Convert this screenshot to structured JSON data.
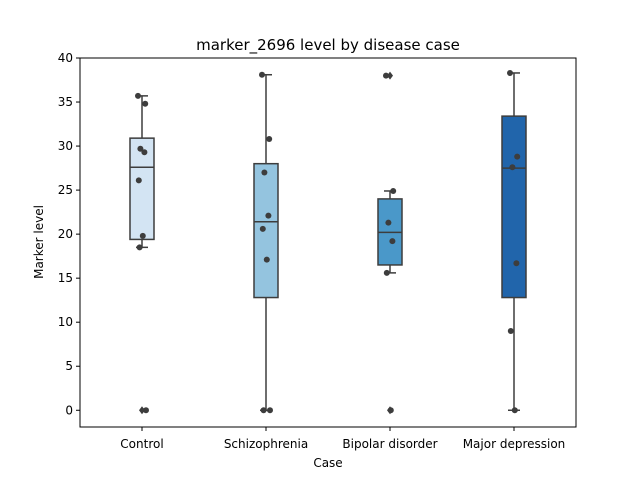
{
  "chart_data": {
    "type": "box",
    "title": "marker_2696 level by disease case",
    "xlabel": "Case",
    "ylabel": "Marker level",
    "ylim": [
      -1.9,
      40
    ],
    "yticks": [
      0,
      5,
      10,
      15,
      20,
      25,
      30,
      35,
      40
    ],
    "categories": [
      "Control",
      "Schizophrenia",
      "Bipolar disorder",
      "Major depression"
    ],
    "colors": [
      "#d3e4f3",
      "#94c4df",
      "#4a98c9",
      "#2165ab"
    ],
    "boxes": [
      {
        "category": "Control",
        "q1": 19.4,
        "median": 27.6,
        "q3": 30.9,
        "whisker_low": 18.5,
        "whisker_high": 35.7,
        "outliers": [
          0.0
        ],
        "points": [
          35.7,
          34.8,
          29.7,
          29.3,
          26.1,
          19.8,
          18.5,
          0.0
        ]
      },
      {
        "category": "Schizophrenia",
        "q1": 12.8,
        "median": 21.4,
        "q3": 28.0,
        "whisker_low": 0.0,
        "whisker_high": 38.1,
        "outliers": [],
        "points": [
          38.1,
          30.8,
          27.0,
          22.1,
          20.6,
          17.1,
          0.0,
          0.0
        ]
      },
      {
        "category": "Bipolar disorder",
        "q1": 16.5,
        "median": 20.2,
        "q3": 24.0,
        "whisker_low": 15.6,
        "whisker_high": 24.9,
        "outliers": [
          0.0,
          38.0
        ],
        "points": [
          38.0,
          24.9,
          21.3,
          19.2,
          15.6,
          0.0
        ]
      },
      {
        "category": "Major depression",
        "q1": 12.8,
        "median": 27.5,
        "q3": 33.4,
        "whisker_low": 0.0,
        "whisker_high": 38.3,
        "outliers": [],
        "points": [
          38.3,
          28.8,
          27.6,
          16.7,
          9.0,
          0.0
        ]
      }
    ],
    "grid": false,
    "legend": "none"
  }
}
